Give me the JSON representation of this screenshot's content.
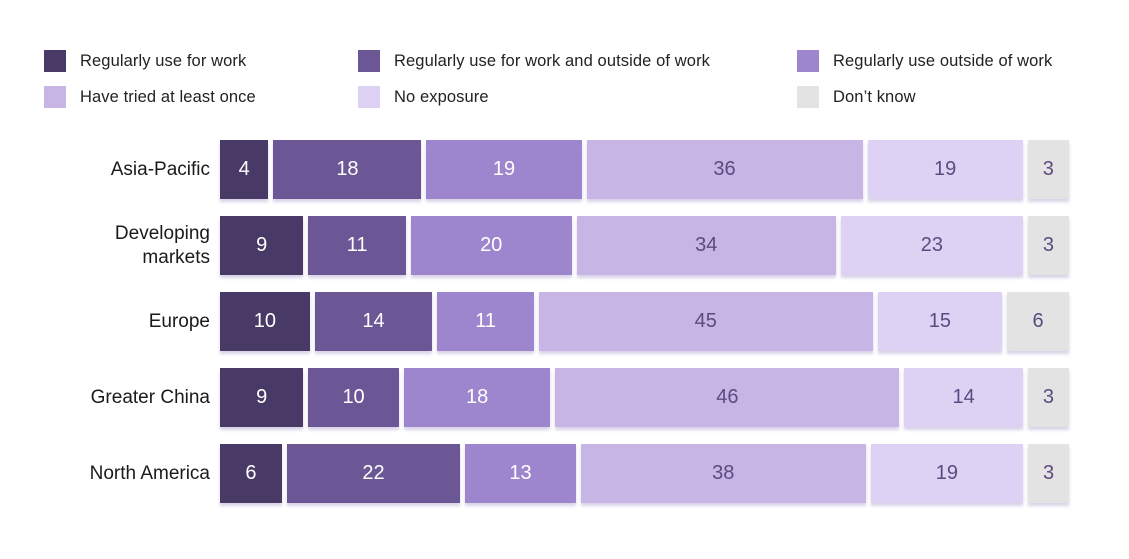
{
  "chart_data": {
    "type": "bar",
    "variant": "horizontal-stacked",
    "title": "",
    "xlabel": "",
    "ylabel": "",
    "xlim": [
      0,
      100
    ],
    "grid": false,
    "legend_position": "top",
    "legend_columns": 3,
    "categories": [
      "Asia-Pacific",
      "Developing markets",
      "Europe",
      "Greater China",
      "North America"
    ],
    "series": [
      {
        "name": "Regularly use for work",
        "color": "#483966",
        "text_color": "#ffffff",
        "values": [
          4,
          9,
          10,
          9,
          6
        ]
      },
      {
        "name": "Regularly use for work and outside of work",
        "color": "#6b5795",
        "text_color": "#ffffff",
        "values": [
          18,
          11,
          14,
          10,
          22
        ]
      },
      {
        "name": "Regularly use outside of work",
        "color": "#9e86ce",
        "text_color": "#ffffff",
        "values": [
          19,
          20,
          11,
          18,
          13
        ]
      },
      {
        "name": "Have tried at least once",
        "color": "#c7b5e6",
        "text_color": "#5c4b7f",
        "values": [
          36,
          34,
          45,
          46,
          38
        ]
      },
      {
        "name": "No exposure",
        "color": "#ded2f4",
        "text_color": "#5c4b7f",
        "values": [
          19,
          23,
          15,
          14,
          19
        ]
      },
      {
        "name": "Don’t know",
        "color": "#e3e3e3",
        "text_color": "#5c4b7f",
        "values": [
          3,
          3,
          6,
          3,
          3
        ]
      }
    ]
  },
  "colors": {
    "background": "#ffffff",
    "label_text": "#1a1a1a",
    "legend_text": "#222222"
  }
}
